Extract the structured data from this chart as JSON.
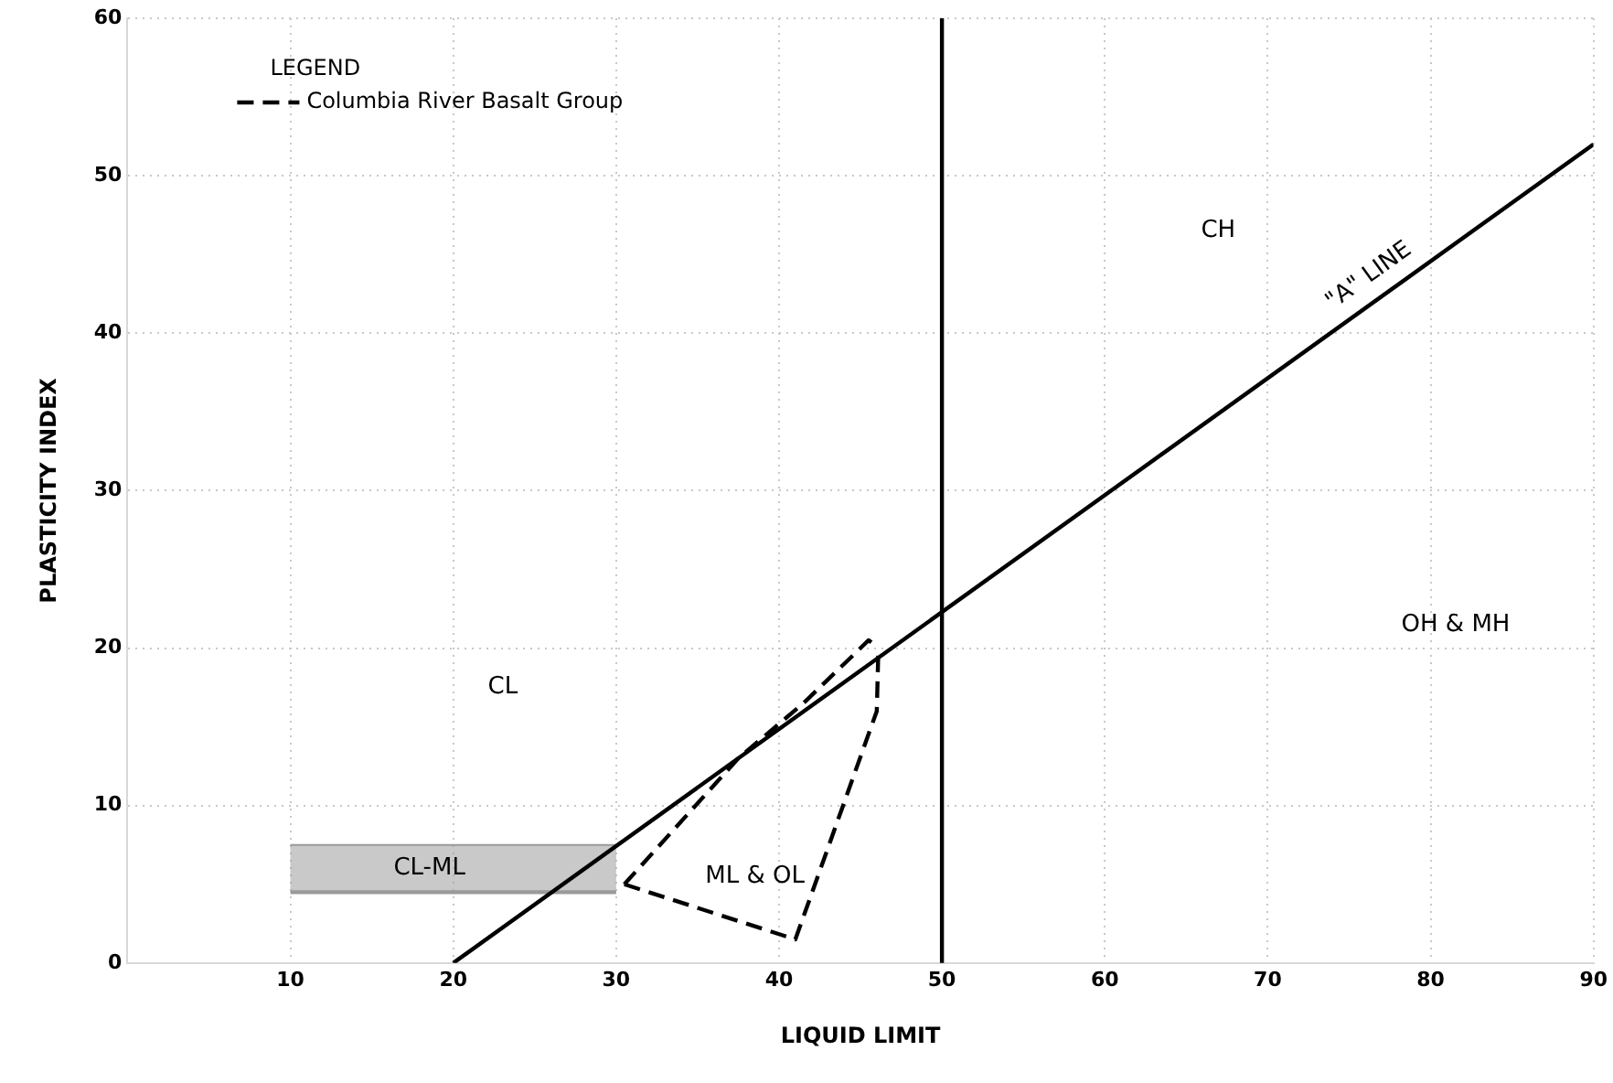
{
  "chart_data": {
    "type": "line",
    "xlabel": "LIQUID LIMIT",
    "ylabel": "PLASTICITY INDEX",
    "legend_title": "LEGEND",
    "legend": "top left",
    "grid": true,
    "marker": "none",
    "xlim": [
      0,
      90
    ],
    "ylim": [
      0,
      60
    ],
    "xticks": [
      10,
      20,
      30,
      40,
      50,
      60,
      70,
      80,
      90
    ],
    "yticks": [
      0,
      10,
      20,
      30,
      40,
      50,
      60
    ],
    "series": [
      {
        "x": [
          20,
          90
        ],
        "values": [
          0,
          52
        ],
        "color": "#000000",
        "line_style": "solid"
      },
      {
        "name": "Columbia River Basalt Group",
        "x": [
          30.5,
          37.5,
          41.5,
          45.5,
          46.1
        ],
        "values": [
          5,
          13,
          16.5,
          20.5,
          20
        ],
        "color": "#000000",
        "line_style": "dashed"
      },
      {
        "x": [
          30.5,
          41,
          46,
          46.1
        ],
        "values": [
          5,
          1.5,
          16,
          20
        ],
        "color": "#000000",
        "line_style": "dashed"
      },
      {
        "x": [
          10,
          30
        ],
        "values": [
          4.5,
          4.5
        ],
        "color": "#9a9a9a",
        "line_style": "solid"
      },
      {
        "type": "area",
        "x": [
          10,
          30
        ],
        "values": [
          7.5,
          7.5
        ],
        "color": "#9a9a9a"
      }
    ],
    "ref_lines": [
      {
        "axis": "x",
        "value": 50,
        "color": "#000000"
      }
    ],
    "annotations": [
      "CL",
      "CH",
      "OH & MH",
      "ML & OL",
      "CL-ML",
      {
        "text": "\"A\" LINE",
        "x": 77,
        "y": 42.5
      }
    ]
  }
}
